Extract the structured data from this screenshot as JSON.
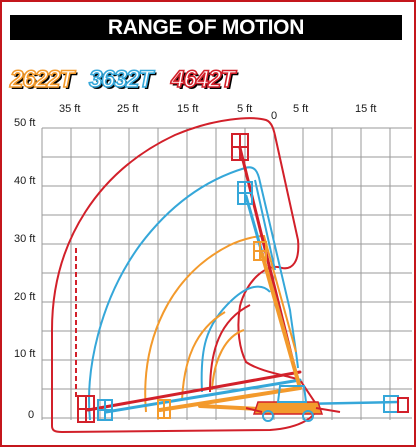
{
  "title": "RANGE OF MOTION",
  "legend": [
    {
      "label": "2622T",
      "color": "#f39a2c"
    },
    {
      "label": "3632T",
      "color": "#35a7d9"
    },
    {
      "label": "4642T",
      "color": "#d2202a"
    }
  ],
  "axes": {
    "x_ticks_left": [
      "35 ft",
      "25 ft",
      "15 ft",
      "5 ft"
    ],
    "x_origin": "0",
    "x_ticks_right": [
      "5 ft",
      "15 ft"
    ],
    "y_ticks": [
      "50 ft",
      "40 ft",
      "30 ft",
      "20 ft",
      "10 ft",
      "0"
    ]
  },
  "colors": {
    "frame": "#c4161c",
    "grid": "#9a9a9a",
    "model_2622T": "#f39a2c",
    "model_3632T": "#35a7d9",
    "model_4642T": "#d2202a"
  },
  "envelopes": {
    "model_2622T": {
      "max_height_ft": 28,
      "max_outreach_ft": 22
    },
    "model_3632T": {
      "max_height_ft": 40,
      "max_outreach_ft": 32
    },
    "model_4642T": {
      "max_height_ft": 50,
      "max_outreach_ft": 41
    }
  }
}
